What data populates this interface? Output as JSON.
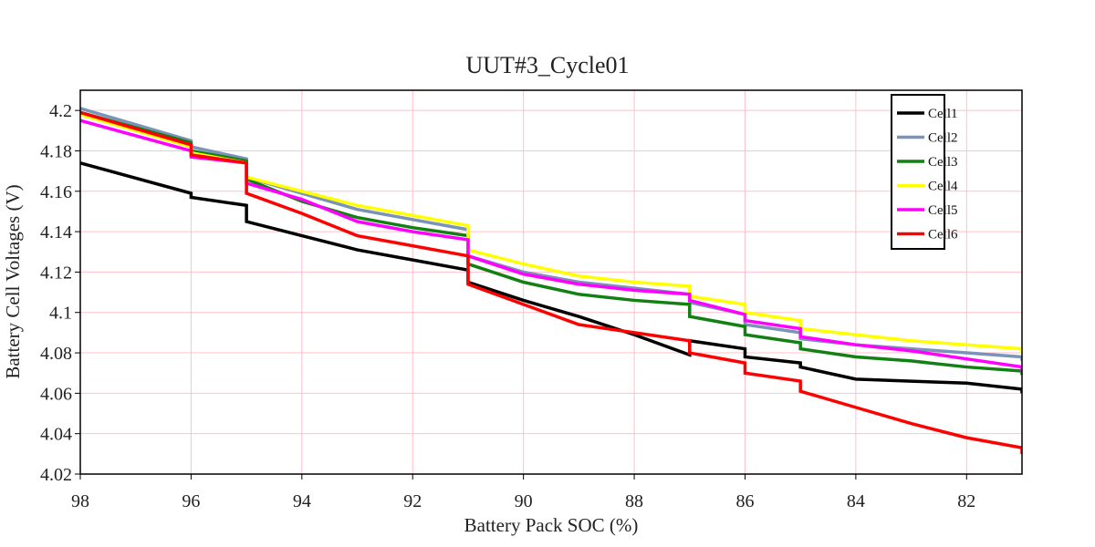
{
  "chart_data": {
    "type": "line",
    "title": "UUT#3_Cycle01",
    "xlabel": "Battery Pack SOC (%)",
    "ylabel": "Battery Cell Voltages (V)",
    "xlim": [
      98,
      81
    ],
    "ylim": [
      4.02,
      4.21
    ],
    "x_reversed": true,
    "xticks": [
      98,
      96,
      94,
      92,
      90,
      88,
      86,
      84,
      82
    ],
    "yticks": [
      4.02,
      4.04,
      4.06,
      4.08,
      4.1,
      4.12,
      4.14,
      4.16,
      4.18,
      4.2
    ],
    "ytick_labels": [
      "4.02",
      "4.04",
      "4.06",
      "4.08",
      "4.1",
      "4.12",
      "4.14",
      "4.16",
      "4.18",
      "4.2"
    ],
    "grid": true,
    "grid_color": "#ffc0cb",
    "legend_position": "top-right",
    "series": [
      {
        "name": "Cell1",
        "color": "#000000",
        "points": [
          [
            98,
            4.174
          ],
          [
            96,
            4.159
          ],
          [
            96,
            4.157
          ],
          [
            95,
            4.153
          ],
          [
            95,
            4.145
          ],
          [
            94,
            4.138
          ],
          [
            93,
            4.131
          ],
          [
            92,
            4.126
          ],
          [
            91,
            4.121
          ],
          [
            91,
            4.115
          ],
          [
            90,
            4.106
          ],
          [
            89,
            4.098
          ],
          [
            88,
            4.089
          ],
          [
            87,
            4.079
          ],
          [
            87,
            4.086
          ],
          [
            86,
            4.082
          ],
          [
            86,
            4.078
          ],
          [
            85,
            4.075
          ],
          [
            85,
            4.073
          ],
          [
            84,
            4.067
          ],
          [
            83,
            4.066
          ],
          [
            82,
            4.065
          ],
          [
            81,
            4.062
          ],
          [
            81,
            4.06
          ]
        ]
      },
      {
        "name": "Cell2",
        "color": "#7a93b8",
        "points": [
          [
            98,
            4.201
          ],
          [
            96,
            4.185
          ],
          [
            96,
            4.182
          ],
          [
            95,
            4.176
          ],
          [
            95,
            4.167
          ],
          [
            94,
            4.159
          ],
          [
            93,
            4.151
          ],
          [
            92,
            4.146
          ],
          [
            91,
            4.141
          ],
          [
            91,
            4.128
          ],
          [
            90,
            4.12
          ],
          [
            89,
            4.115
          ],
          [
            88,
            4.112
          ],
          [
            87,
            4.109
          ],
          [
            87,
            4.105
          ],
          [
            86,
            4.099
          ],
          [
            86,
            4.094
          ],
          [
            85,
            4.09
          ],
          [
            85,
            4.087
          ],
          [
            84,
            4.084
          ],
          [
            83,
            4.082
          ],
          [
            82,
            4.08
          ],
          [
            81,
            4.078
          ],
          [
            81,
            4.076
          ]
        ]
      },
      {
        "name": "Cell3",
        "color": "#138013",
        "points": [
          [
            98,
            4.199
          ],
          [
            96,
            4.184
          ],
          [
            96,
            4.18
          ],
          [
            95,
            4.175
          ],
          [
            95,
            4.166
          ],
          [
            94,
            4.155
          ],
          [
            93,
            4.147
          ],
          [
            92,
            4.142
          ],
          [
            91,
            4.138
          ],
          [
            91,
            4.124
          ],
          [
            90,
            4.115
          ],
          [
            89,
            4.109
          ],
          [
            88,
            4.106
          ],
          [
            87,
            4.104
          ],
          [
            87,
            4.098
          ],
          [
            86,
            4.093
          ],
          [
            86,
            4.089
          ],
          [
            85,
            4.085
          ],
          [
            85,
            4.082
          ],
          [
            84,
            4.078
          ],
          [
            83,
            4.076
          ],
          [
            82,
            4.073
          ],
          [
            81,
            4.071
          ],
          [
            81,
            4.069
          ]
        ]
      },
      {
        "name": "Cell4",
        "color": "#ffff00",
        "points": [
          [
            98,
            4.198
          ],
          [
            96,
            4.182
          ],
          [
            96,
            4.179
          ],
          [
            95,
            4.174
          ],
          [
            95,
            4.167
          ],
          [
            94,
            4.16
          ],
          [
            93,
            4.153
          ],
          [
            92,
            4.148
          ],
          [
            91,
            4.143
          ],
          [
            91,
            4.131
          ],
          [
            90,
            4.124
          ],
          [
            89,
            4.118
          ],
          [
            88,
            4.115
          ],
          [
            87,
            4.113
          ],
          [
            87,
            4.108
          ],
          [
            86,
            4.104
          ],
          [
            86,
            4.1
          ],
          [
            85,
            4.096
          ],
          [
            85,
            4.092
          ],
          [
            84,
            4.089
          ],
          [
            83,
            4.086
          ],
          [
            82,
            4.084
          ],
          [
            81,
            4.082
          ],
          [
            81,
            4.08
          ]
        ]
      },
      {
        "name": "Cell5",
        "color": "#ff00ff",
        "points": [
          [
            98,
            4.195
          ],
          [
            96,
            4.18
          ],
          [
            96,
            4.177
          ],
          [
            95,
            4.174
          ],
          [
            95,
            4.164
          ],
          [
            94,
            4.156
          ],
          [
            93,
            4.145
          ],
          [
            92,
            4.14
          ],
          [
            91,
            4.136
          ],
          [
            91,
            4.128
          ],
          [
            90,
            4.119
          ],
          [
            89,
            4.114
          ],
          [
            88,
            4.111
          ],
          [
            87,
            4.109
          ],
          [
            87,
            4.106
          ],
          [
            86,
            4.099
          ],
          [
            86,
            4.096
          ],
          [
            85,
            4.092
          ],
          [
            85,
            4.088
          ],
          [
            84,
            4.084
          ],
          [
            83,
            4.081
          ],
          [
            82,
            4.077
          ],
          [
            81,
            4.073
          ],
          [
            81,
            4.071
          ]
        ]
      },
      {
        "name": "Cell6",
        "color": "#ff0000",
        "points": [
          [
            98,
            4.199
          ],
          [
            96,
            4.183
          ],
          [
            96,
            4.178
          ],
          [
            95,
            4.174
          ],
          [
            95,
            4.159
          ],
          [
            94,
            4.149
          ],
          [
            93,
            4.138
          ],
          [
            92,
            4.133
          ],
          [
            91,
            4.128
          ],
          [
            91,
            4.114
          ],
          [
            90,
            4.104
          ],
          [
            89,
            4.094
          ],
          [
            88,
            4.09
          ],
          [
            87,
            4.086
          ],
          [
            87,
            4.08
          ],
          [
            86,
            4.075
          ],
          [
            86,
            4.07
          ],
          [
            85,
            4.066
          ],
          [
            85,
            4.061
          ],
          [
            84,
            4.053
          ],
          [
            83,
            4.045
          ],
          [
            82,
            4.038
          ],
          [
            81,
            4.033
          ],
          [
            81,
            4.03
          ]
        ]
      }
    ]
  }
}
